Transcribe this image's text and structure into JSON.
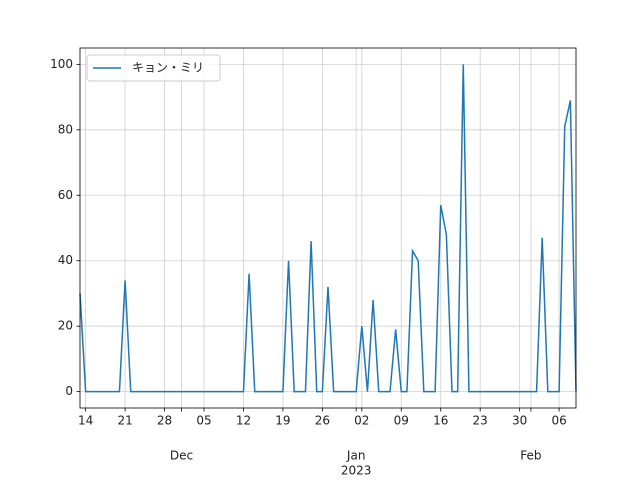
{
  "chart_data": {
    "type": "line",
    "x": [
      -49,
      -48,
      -47,
      -46,
      -45,
      -44,
      -43,
      -42,
      -41,
      -40,
      -39,
      -38,
      -37,
      -36,
      -35,
      -34,
      -33,
      -32,
      -31,
      -30,
      -29,
      -28,
      -27,
      -26,
      -25,
      -24,
      -23,
      -22,
      -21,
      -20,
      -19,
      -18,
      -17,
      -16,
      -15,
      -14,
      -13,
      -12,
      -11,
      -10,
      -9,
      -8,
      -7,
      -6,
      -5,
      -4,
      -3,
      -2,
      -1,
      0,
      1,
      2,
      3,
      4,
      5,
      6,
      7,
      8,
      9,
      10,
      11,
      12,
      13,
      14,
      15,
      16,
      17,
      18,
      19,
      20,
      21,
      22,
      23,
      24,
      25,
      26,
      27,
      28,
      29,
      30,
      31,
      32,
      33,
      34,
      35,
      36,
      37,
      38,
      39
    ],
    "series": [
      {
        "name": "キョン・ミリ",
        "color": "#1f77b4",
        "values": [
          30,
          0,
          0,
          0,
          0,
          0,
          0,
          0,
          34,
          0,
          0,
          0,
          0,
          0,
          0,
          0,
          0,
          0,
          0,
          0,
          0,
          0,
          0,
          0,
          0,
          0,
          0,
          0,
          0,
          0,
          36,
          0,
          0,
          0,
          0,
          0,
          0,
          40,
          0,
          0,
          0,
          46,
          0,
          0,
          32,
          0,
          0,
          0,
          0,
          0,
          20,
          0,
          28,
          0,
          0,
          0,
          19,
          0,
          0,
          43,
          40,
          0,
          0,
          0,
          57,
          48,
          0,
          0,
          100,
          0,
          0,
          0,
          0,
          0,
          0,
          0,
          0,
          0,
          0,
          0,
          0,
          0,
          47,
          0,
          0,
          0,
          81,
          89,
          0
        ]
      }
    ],
    "xlim": [
      -49,
      39
    ],
    "xticks": [
      {
        "value": -48,
        "label": "14"
      },
      {
        "value": -41,
        "label": "21"
      },
      {
        "value": -34,
        "label": "28"
      },
      {
        "value": -27,
        "label": "05"
      },
      {
        "value": -20,
        "label": "12"
      },
      {
        "value": -13,
        "label": "19"
      },
      {
        "value": -6,
        "label": "26"
      },
      {
        "value": 1,
        "label": "02"
      },
      {
        "value": 8,
        "label": "09"
      },
      {
        "value": 15,
        "label": "16"
      },
      {
        "value": 22,
        "label": "23"
      },
      {
        "value": 29,
        "label": "30"
      },
      {
        "value": 36,
        "label": "06"
      }
    ],
    "x_month_ticks": [
      {
        "value": -31,
        "label": "Dec"
      },
      {
        "value": 0,
        "label": "Jan"
      },
      {
        "value": 31,
        "label": "Feb"
      }
    ],
    "x_year_ticks": [
      {
        "value": 0,
        "label": "2023"
      }
    ],
    "ylim": [
      -5,
      105
    ],
    "yticks": [
      0,
      20,
      40,
      60,
      80,
      100
    ],
    "grid": true,
    "legend": "upper left"
  }
}
